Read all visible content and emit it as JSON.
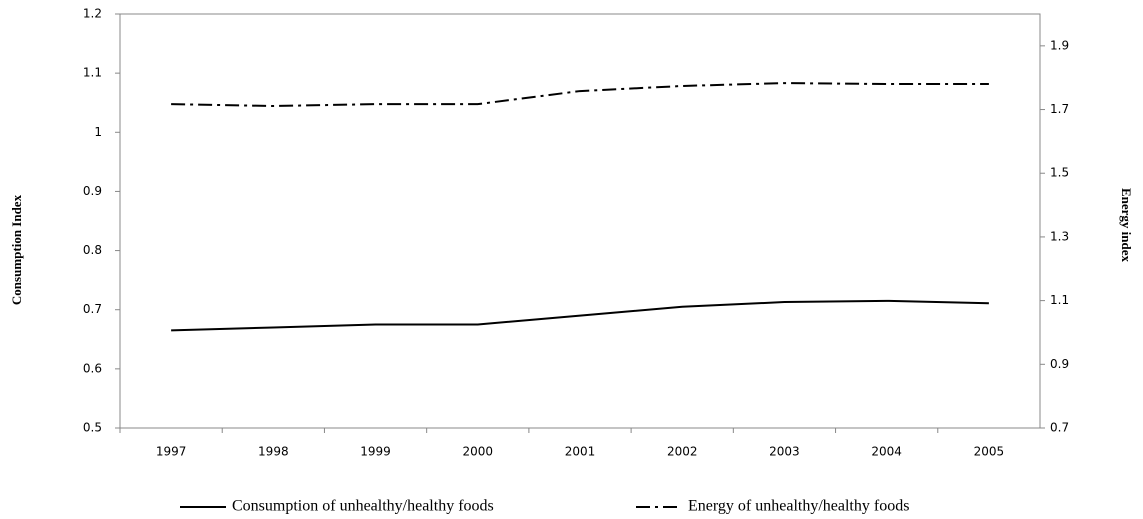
{
  "chart_data": {
    "type": "line",
    "categories": [
      "1997",
      "1998",
      "1999",
      "2000",
      "2001",
      "2002",
      "2003",
      "2004",
      "2005"
    ],
    "y_label": "Consumption Index",
    "y2_label": "Energy index",
    "ylim": [
      0.5,
      1.2
    ],
    "yticks": [
      0.5,
      0.6,
      0.7,
      0.8,
      0.9,
      1,
      1.1,
      1.2
    ],
    "y2lim": [
      0.7,
      2.0
    ],
    "y2ticks": [
      0.7,
      0.9,
      1.1,
      1.3,
      1.5,
      1.7,
      1.9
    ],
    "legend": "bottom",
    "series": [
      {
        "name": "Consumption of unhealthy/healthy foods",
        "color": "#000000",
        "line_style": "solid",
        "values": [
          0.665,
          0.67,
          0.675,
          0.675,
          0.69,
          0.705,
          0.713,
          0.715,
          0.711
        ]
      },
      {
        "name": "Energy of unhealthy/healthy foods",
        "color": "#000000",
        "line_style": "dash-dot",
        "axis": "y2",
        "values": [
          1.717,
          1.711,
          1.717,
          1.717,
          1.758,
          1.774,
          1.783,
          1.78,
          1.78
        ]
      }
    ]
  }
}
